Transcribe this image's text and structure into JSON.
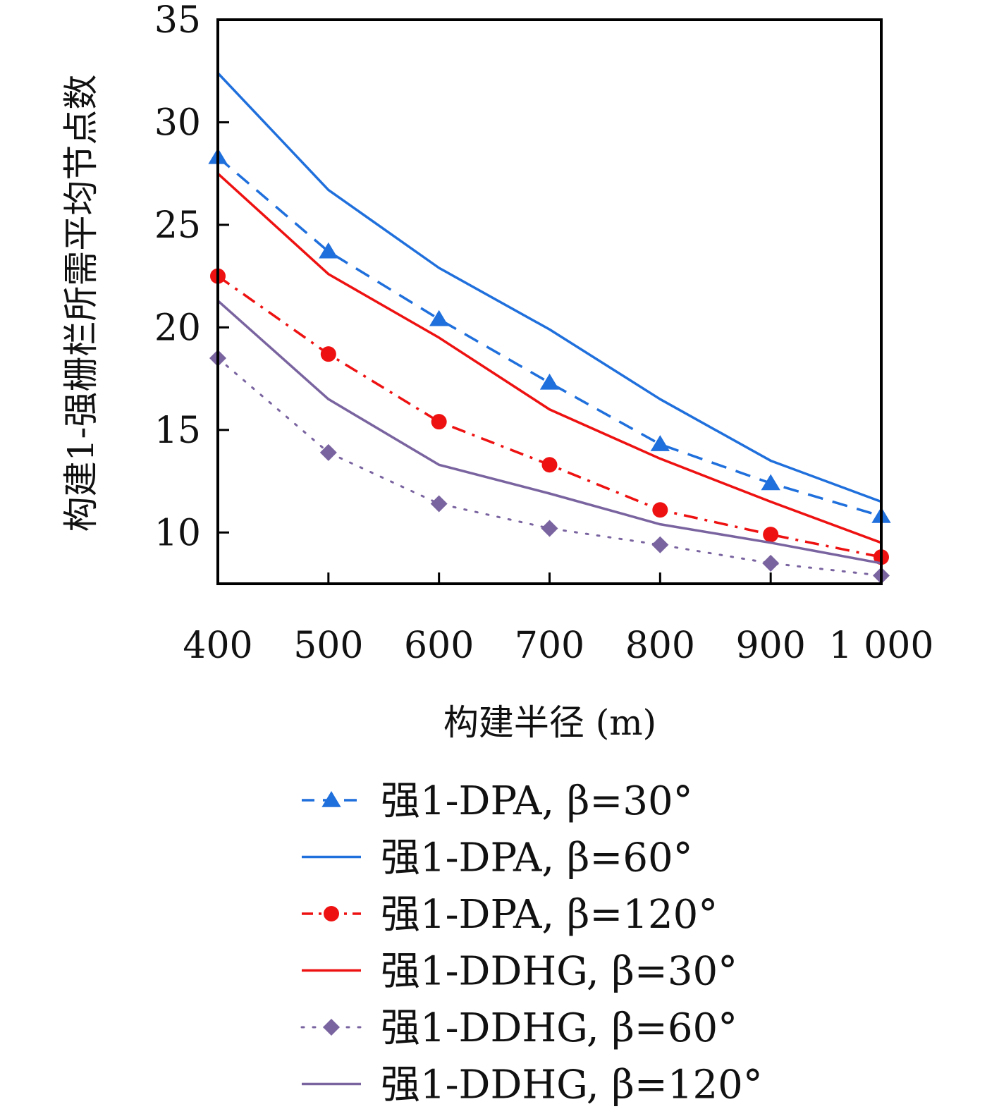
{
  "chart_data": {
    "type": "line",
    "xlabel": "构建半径 (m)",
    "ylabel": "构建1-强栅栏所需平均节点数",
    "x": [
      400,
      500,
      600,
      700,
      800,
      900,
      1000
    ],
    "x_tick_labels": [
      "400",
      "500",
      "600",
      "700",
      "800",
      "900",
      "1 000"
    ],
    "y_ticks": [
      10,
      15,
      20,
      25,
      30,
      35
    ],
    "y_tick_labels": [
      "10",
      "15",
      "20",
      "25",
      "30",
      "35"
    ],
    "xlim": [
      400,
      1000
    ],
    "ylim": [
      7.5,
      35
    ],
    "grid": false,
    "legend_position": "bottom",
    "series": [
      {
        "name": "强1-DPA,  β=30°",
        "values": [
          28.3,
          23.7,
          20.4,
          17.3,
          14.3,
          12.4,
          10.8
        ],
        "color": "#1f6fdc",
        "dash": "dashed",
        "marker": "triangle"
      },
      {
        "name": "强1-DPA,  β=60°",
        "values": [
          32.4,
          26.7,
          22.9,
          19.9,
          16.5,
          13.5,
          11.5
        ],
        "color": "#1f6fdc",
        "dash": "solid",
        "marker": "none"
      },
      {
        "name": "强1-DPA,  β=120°",
        "values": [
          22.5,
          18.7,
          15.4,
          13.3,
          11.1,
          9.9,
          8.8
        ],
        "color": "#ee1111",
        "dash": "dashdot",
        "marker": "circle"
      },
      {
        "name": "强1-DDHG,  β=30°",
        "values": [
          27.5,
          22.6,
          19.5,
          16.0,
          13.6,
          11.5,
          9.5
        ],
        "color": "#ee1111",
        "dash": "solid",
        "marker": "none"
      },
      {
        "name": "强1-DDHG,  β=60°",
        "values": [
          18.5,
          13.9,
          11.4,
          10.2,
          9.4,
          8.5,
          7.9
        ],
        "color": "#7a64a0",
        "dash": "dotted",
        "marker": "diamond"
      },
      {
        "name": "强1-DDHG,  β=120°",
        "values": [
          21.3,
          16.5,
          13.3,
          11.9,
          10.4,
          9.5,
          8.5
        ],
        "color": "#7a64a0",
        "dash": "solid",
        "marker": "none"
      }
    ]
  }
}
